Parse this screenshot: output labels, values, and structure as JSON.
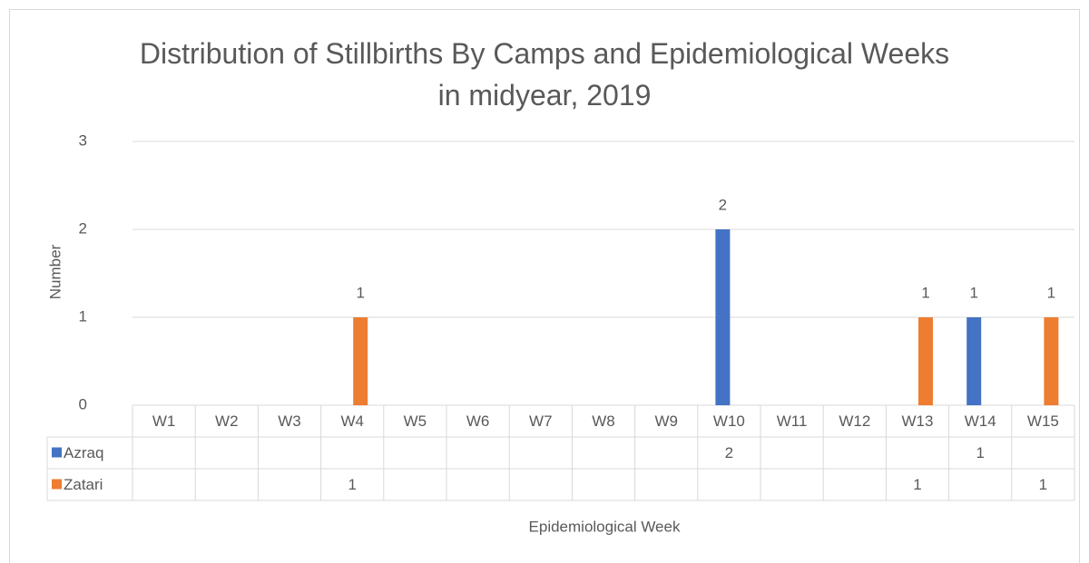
{
  "chart_data": {
    "type": "bar",
    "title": "Distribution of Stillbirths By Camps and Epidemiological Weeks in midyear, 2019",
    "x_label": "Epidemiological Week",
    "y_label": "Number",
    "categories": [
      "W1",
      "W2",
      "W3",
      "W4",
      "W5",
      "W6",
      "W7",
      "W8",
      "W9",
      "W10",
      "W11",
      "W12",
      "W13",
      "W14",
      "W15"
    ],
    "series": [
      {
        "name": "Azraq",
        "color": "#4472c4",
        "values": [
          null,
          null,
          null,
          null,
          null,
          null,
          null,
          null,
          null,
          2,
          null,
          null,
          null,
          1,
          null
        ]
      },
      {
        "name": "Zatari",
        "color": "#ed7d31",
        "values": [
          null,
          null,
          null,
          1,
          null,
          null,
          null,
          null,
          null,
          null,
          null,
          null,
          1,
          null,
          1
        ]
      }
    ],
    "ylim": [
      0,
      3
    ],
    "yticks": [
      0,
      1,
      2,
      3
    ],
    "grid": true,
    "data_table": true
  }
}
